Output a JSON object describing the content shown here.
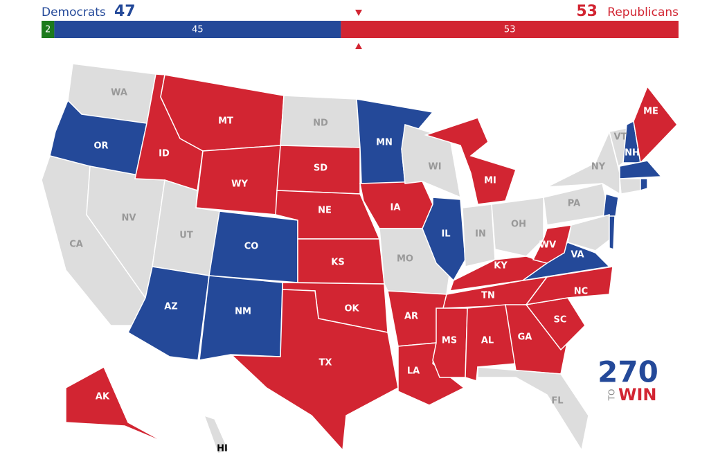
{
  "header": {
    "left_party": "Democrats",
    "left_total": 47,
    "right_total": 53,
    "right_party": "Republicans"
  },
  "bar": {
    "segments": [
      {
        "value": 2,
        "color": "#1c7a1c"
      },
      {
        "value": 45,
        "color": "#244999"
      },
      {
        "value": 53,
        "color": "#d22532"
      }
    ]
  },
  "map": {
    "states": [
      {
        "label": "WA",
        "color": "#dddddd"
      },
      {
        "label": "OR",
        "color": "#244999"
      },
      {
        "label": "CA",
        "color": "#dddddd"
      },
      {
        "label": "NV",
        "color": "#dddddd"
      },
      {
        "label": "ID",
        "color": "#d22532"
      },
      {
        "label": "MT",
        "color": "#d22532"
      },
      {
        "label": "WY",
        "color": "#d22532"
      },
      {
        "label": "UT",
        "color": "#dddddd"
      },
      {
        "label": "AZ",
        "color": "#244999"
      },
      {
        "label": "CO",
        "color": "#244999"
      },
      {
        "label": "NM",
        "color": "#244999"
      },
      {
        "label": "ND",
        "color": "#dddddd"
      },
      {
        "label": "SD",
        "color": "#d22532"
      },
      {
        "label": "NE",
        "color": "#d22532"
      },
      {
        "label": "KS",
        "color": "#d22532"
      },
      {
        "label": "OK",
        "color": "#d22532"
      },
      {
        "label": "TX",
        "color": "#d22532"
      },
      {
        "label": "MN",
        "color": "#244999"
      },
      {
        "label": "IA",
        "color": "#d22532"
      },
      {
        "label": "MO",
        "color": "#dddddd"
      },
      {
        "label": "AR",
        "color": "#d22532"
      },
      {
        "label": "LA",
        "color": "#d22532"
      },
      {
        "label": "WI",
        "color": "#dddddd"
      },
      {
        "label": "IL",
        "color": "#244999"
      },
      {
        "label": "MI",
        "color": "#d22532"
      },
      {
        "label": "IN",
        "color": "#dddddd"
      },
      {
        "label": "OH",
        "color": "#dddddd"
      },
      {
        "label": "KY",
        "color": "#d22532"
      },
      {
        "label": "TN",
        "color": "#d22532"
      },
      {
        "label": "MS",
        "color": "#d22532"
      },
      {
        "label": "AL",
        "color": "#d22532"
      },
      {
        "label": "GA",
        "color": "#d22532"
      },
      {
        "label": "FL",
        "color": "#dddddd"
      },
      {
        "label": "SC",
        "color": "#d22532"
      },
      {
        "label": "NC",
        "color": "#d22532"
      },
      {
        "label": "VA",
        "color": "#244999"
      },
      {
        "label": "WV",
        "color": "#d22532"
      },
      {
        "label": "PA",
        "color": "#dddddd"
      },
      {
        "label": "NY",
        "color": "#dddddd"
      },
      {
        "label": "VT",
        "color": "#dddddd"
      },
      {
        "label": "NH",
        "color": "#244999"
      },
      {
        "label": "ME",
        "color": "#d22532"
      },
      {
        "label": "AK",
        "color": "#d22532"
      },
      {
        "label": "HI",
        "color": "#dddddd"
      },
      {
        "color": "#244999"
      },
      {
        "color": "#dddddd"
      },
      {
        "color": "#244999"
      },
      {
        "color": "#dddddd"
      },
      {
        "color": "#244999"
      },
      {
        "color": "#244999"
      }
    ]
  },
  "logo": {
    "number": "270",
    "to": "TO",
    "win": "WIN"
  }
}
